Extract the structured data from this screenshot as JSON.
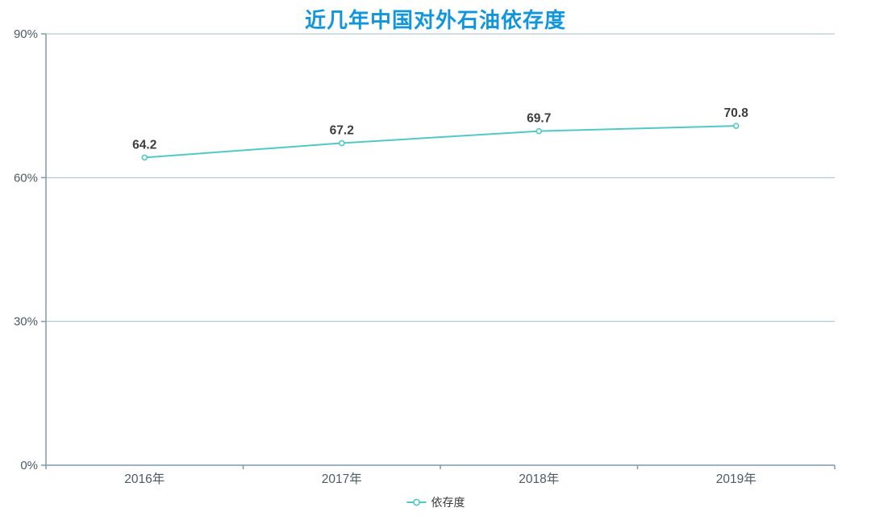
{
  "title": {
    "text": "近几年中国对外石油依存度"
  },
  "legend": {
    "items": [
      {
        "label": "依存度"
      }
    ],
    "position": "bottom-center"
  },
  "colors": {
    "background": "#ffffff",
    "title": "#1296db",
    "line": "#52c8c6",
    "marker_fill": "#ffffff",
    "grid": "#a3bfca",
    "axis": "#7e9aaa",
    "axis_label": "#4d5a63",
    "data_label": "#3c3c3c"
  },
  "chart_data": {
    "type": "line",
    "title": "近几年中国对外石油依存度",
    "categories": [
      "2016年",
      "2017年",
      "2018年",
      "2019年"
    ],
    "series": [
      {
        "name": "依存度",
        "values": [
          64.2,
          67.2,
          69.7,
          70.8
        ]
      }
    ],
    "data_labels": [
      "64.2",
      "67.2",
      "69.7",
      "70.8"
    ],
    "xlabel": "",
    "ylabel": "",
    "y_axis": {
      "min": 0,
      "max": 90,
      "ticks": [
        0,
        30,
        60,
        90
      ],
      "tick_labels": [
        "0%",
        "30%",
        "60%",
        "90%"
      ],
      "unit": "%"
    },
    "grid": true,
    "marker": "empty-circle",
    "legend_position": "bottom-center"
  }
}
